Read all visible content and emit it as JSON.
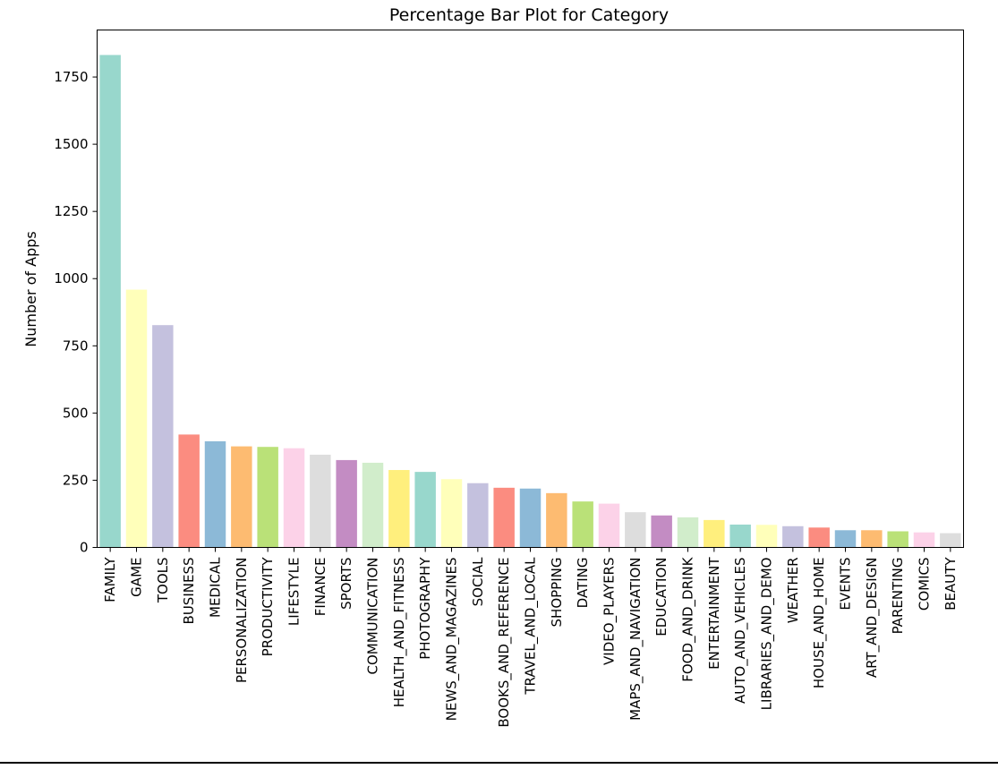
{
  "chart_data": {
    "type": "bar",
    "title": "Percentage Bar Plot for Category",
    "xlabel": "",
    "ylabel": "Number of Apps",
    "ylim": [
      0,
      1925
    ],
    "yticks": [
      0,
      250,
      500,
      750,
      1000,
      1250,
      1500,
      1750
    ],
    "grid": false,
    "legend": "none",
    "categories": [
      "FAMILY",
      "GAME",
      "TOOLS",
      "BUSINESS",
      "MEDICAL",
      "PERSONALIZATION",
      "PRODUCTIVITY",
      "LIFESTYLE",
      "FINANCE",
      "SPORTS",
      "COMMUNICATION",
      "HEALTH_AND_FITNESS",
      "PHOTOGRAPHY",
      "NEWS_AND_MAGAZINES",
      "SOCIAL",
      "BOOKS_AND_REFERENCE",
      "TRAVEL_AND_LOCAL",
      "SHOPPING",
      "DATING",
      "VIDEO_PLAYERS",
      "MAPS_AND_NAVIGATION",
      "EDUCATION",
      "FOOD_AND_DRINK",
      "ENTERTAINMENT",
      "AUTO_AND_VEHICLES",
      "LIBRARIES_AND_DEMO",
      "WEATHER",
      "HOUSE_AND_HOME",
      "EVENTS",
      "ART_AND_DESIGN",
      "PARENTING",
      "COMICS",
      "BEAUTY"
    ],
    "values": [
      1832,
      959,
      827,
      420,
      395,
      376,
      374,
      369,
      345,
      325,
      315,
      288,
      281,
      254,
      239,
      222,
      219,
      202,
      171,
      163,
      131,
      119,
      112,
      102,
      85,
      84,
      79,
      74,
      64,
      64,
      60,
      56,
      53
    ],
    "colors": [
      "#8dd3c7",
      "#ffffb3",
      "#bebada",
      "#fb8072",
      "#80b1d3",
      "#fdb462",
      "#b3de69",
      "#fccde5",
      "#d9d9d9",
      "#bc80bd",
      "#ccebc5",
      "#ffed6f"
    ],
    "bar_alpha": 0.9
  }
}
